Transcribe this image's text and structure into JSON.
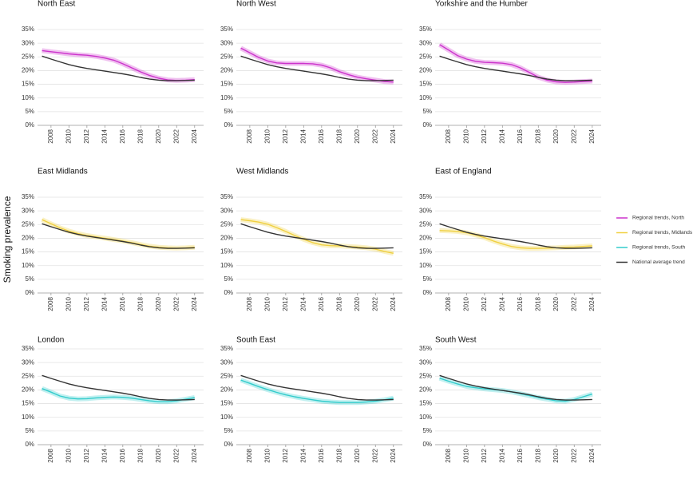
{
  "y_label": "Smoking prevalence",
  "chart_data": [
    {
      "type": "line",
      "title": "North East",
      "x": [
        2007,
        2008,
        2009,
        2010,
        2011,
        2012,
        2013,
        2014,
        2015,
        2016,
        2017,
        2018,
        2019,
        2020,
        2021,
        2022,
        2023,
        2024
      ],
      "xlim": [
        2006.5,
        2025
      ],
      "xticks": [
        2008,
        2010,
        2012,
        2014,
        2016,
        2018,
        2020,
        2022,
        2024
      ],
      "ylim": [
        0,
        35
      ],
      "yticks": [
        {
          "value": 0,
          "label": "0%"
        },
        {
          "value": 5,
          "label": "5%"
        },
        {
          "value": 10,
          "label": "10%"
        },
        {
          "value": 15,
          "label": "15%"
        },
        {
          "value": 20,
          "label": "20%"
        },
        {
          "value": 25,
          "label": "25%"
        },
        {
          "value": 30,
          "label": "30%"
        },
        {
          "value": 35,
          "label": "35%"
        }
      ],
      "grid": true,
      "series": [
        {
          "name": "Regional trends, North",
          "color": "#cc33cc",
          "values": [
            27.3,
            26.9,
            26.5,
            26.1,
            25.8,
            25.6,
            25.2,
            24.6,
            23.8,
            22.5,
            21.0,
            19.5,
            18.2,
            17.2,
            16.6,
            16.4,
            16.5,
            16.7
          ]
        },
        {
          "name": "National average trend",
          "color": "#333333",
          "values": [
            25.3,
            24.2,
            23.2,
            22.2,
            21.4,
            20.8,
            20.3,
            19.8,
            19.3,
            18.8,
            18.2,
            17.5,
            16.9,
            16.5,
            16.3,
            16.3,
            16.4,
            16.5
          ]
        }
      ]
    },
    {
      "type": "line",
      "title": "North West",
      "x": [
        2007,
        2008,
        2009,
        2010,
        2011,
        2012,
        2013,
        2014,
        2015,
        2016,
        2017,
        2018,
        2019,
        2020,
        2021,
        2022,
        2023,
        2024
      ],
      "xlim": [
        2006.5,
        2025
      ],
      "xticks": [
        2008,
        2010,
        2012,
        2014,
        2016,
        2018,
        2020,
        2022,
        2024
      ],
      "ylim": [
        0,
        35
      ],
      "yticks": [
        {
          "value": 0,
          "label": "0%"
        },
        {
          "value": 5,
          "label": "5%"
        },
        {
          "value": 10,
          "label": "10%"
        },
        {
          "value": 15,
          "label": "15%"
        },
        {
          "value": 20,
          "label": "20%"
        },
        {
          "value": 25,
          "label": "25%"
        },
        {
          "value": 30,
          "label": "30%"
        },
        {
          "value": 35,
          "label": "35%"
        }
      ],
      "grid": true,
      "series": [
        {
          "name": "Regional trends, North",
          "color": "#cc33cc",
          "values": [
            28.2,
            26.5,
            24.8,
            23.5,
            22.8,
            22.6,
            22.6,
            22.6,
            22.5,
            22.0,
            21.0,
            19.6,
            18.5,
            17.6,
            17.0,
            16.5,
            16.0,
            15.8
          ]
        },
        {
          "name": "National average trend",
          "color": "#333333",
          "values": [
            25.3,
            24.2,
            23.2,
            22.2,
            21.4,
            20.8,
            20.3,
            19.8,
            19.3,
            18.8,
            18.2,
            17.5,
            16.9,
            16.5,
            16.3,
            16.3,
            16.4,
            16.5
          ]
        }
      ]
    },
    {
      "type": "line",
      "title": "Yorkshire and the Humber",
      "x": [
        2007,
        2008,
        2009,
        2010,
        2011,
        2012,
        2013,
        2014,
        2015,
        2016,
        2017,
        2018,
        2019,
        2020,
        2021,
        2022,
        2023,
        2024
      ],
      "xlim": [
        2006.5,
        2025
      ],
      "xticks": [
        2008,
        2010,
        2012,
        2014,
        2016,
        2018,
        2020,
        2022,
        2024
      ],
      "ylim": [
        0,
        35
      ],
      "yticks": [
        {
          "value": 0,
          "label": "0%"
        },
        {
          "value": 5,
          "label": "5%"
        },
        {
          "value": 10,
          "label": "10%"
        },
        {
          "value": 15,
          "label": "15%"
        },
        {
          "value": 20,
          "label": "20%"
        },
        {
          "value": 25,
          "label": "25%"
        },
        {
          "value": 30,
          "label": "30%"
        },
        {
          "value": 35,
          "label": "35%"
        }
      ],
      "grid": true,
      "series": [
        {
          "name": "Regional trends, North",
          "color": "#cc33cc",
          "values": [
            29.5,
            27.5,
            25.5,
            24.2,
            23.4,
            23.0,
            22.9,
            22.7,
            22.2,
            21.0,
            19.3,
            17.6,
            16.5,
            15.9,
            15.7,
            15.8,
            16.0,
            16.2
          ]
        },
        {
          "name": "National average trend",
          "color": "#333333",
          "values": [
            25.3,
            24.2,
            23.2,
            22.2,
            21.4,
            20.8,
            20.3,
            19.8,
            19.3,
            18.8,
            18.2,
            17.5,
            16.9,
            16.5,
            16.3,
            16.3,
            16.4,
            16.5
          ]
        }
      ]
    },
    {
      "type": "line",
      "title": "East Midlands",
      "x": [
        2007,
        2008,
        2009,
        2010,
        2011,
        2012,
        2013,
        2014,
        2015,
        2016,
        2017,
        2018,
        2019,
        2020,
        2021,
        2022,
        2023,
        2024
      ],
      "xlim": [
        2006.5,
        2025
      ],
      "xticks": [
        2008,
        2010,
        2012,
        2014,
        2016,
        2018,
        2020,
        2022,
        2024
      ],
      "ylim": [
        0,
        35
      ],
      "yticks": [
        {
          "value": 0,
          "label": "0%"
        },
        {
          "value": 5,
          "label": "5%"
        },
        {
          "value": 10,
          "label": "10%"
        },
        {
          "value": 15,
          "label": "15%"
        },
        {
          "value": 20,
          "label": "20%"
        },
        {
          "value": 25,
          "label": "25%"
        },
        {
          "value": 30,
          "label": "30%"
        },
        {
          "value": 35,
          "label": "35%"
        }
      ],
      "grid": true,
      "series": [
        {
          "name": "Regional trends, Midlands",
          "color": "#f0d040",
          "values": [
            26.8,
            25.3,
            23.8,
            22.6,
            21.7,
            21.0,
            20.5,
            20.0,
            19.5,
            19.0,
            18.4,
            17.7,
            17.1,
            16.7,
            16.5,
            16.4,
            16.5,
            16.7
          ]
        },
        {
          "name": "National average trend",
          "color": "#333333",
          "values": [
            25.3,
            24.2,
            23.2,
            22.2,
            21.4,
            20.8,
            20.3,
            19.8,
            19.3,
            18.8,
            18.2,
            17.5,
            16.9,
            16.5,
            16.3,
            16.3,
            16.4,
            16.5
          ]
        }
      ]
    },
    {
      "type": "line",
      "title": "West Midlands",
      "x": [
        2007,
        2008,
        2009,
        2010,
        2011,
        2012,
        2013,
        2014,
        2015,
        2016,
        2017,
        2018,
        2019,
        2020,
        2021,
        2022,
        2023,
        2024
      ],
      "xlim": [
        2006.5,
        2025
      ],
      "xticks": [
        2008,
        2010,
        2012,
        2014,
        2016,
        2018,
        2020,
        2022,
        2024
      ],
      "ylim": [
        0,
        35
      ],
      "yticks": [
        {
          "value": 0,
          "label": "0%"
        },
        {
          "value": 5,
          "label": "5%"
        },
        {
          "value": 10,
          "label": "10%"
        },
        {
          "value": 15,
          "label": "15%"
        },
        {
          "value": 20,
          "label": "20%"
        },
        {
          "value": 25,
          "label": "25%"
        },
        {
          "value": 30,
          "label": "30%"
        },
        {
          "value": 35,
          "label": "35%"
        }
      ],
      "grid": true,
      "series": [
        {
          "name": "Regional trends, Midlands",
          "color": "#f0d040",
          "values": [
            26.8,
            26.4,
            25.9,
            25.1,
            23.9,
            22.5,
            21.0,
            19.6,
            18.4,
            17.6,
            17.3,
            17.2,
            17.0,
            16.8,
            16.5,
            16.0,
            15.2,
            14.5
          ]
        },
        {
          "name": "National average trend",
          "color": "#333333",
          "values": [
            25.3,
            24.2,
            23.2,
            22.2,
            21.4,
            20.8,
            20.3,
            19.8,
            19.3,
            18.8,
            18.2,
            17.5,
            16.9,
            16.5,
            16.3,
            16.3,
            16.4,
            16.5
          ]
        }
      ]
    },
    {
      "type": "line",
      "title": "East of England",
      "x": [
        2007,
        2008,
        2009,
        2010,
        2011,
        2012,
        2013,
        2014,
        2015,
        2016,
        2017,
        2018,
        2019,
        2020,
        2021,
        2022,
        2023,
        2024
      ],
      "xlim": [
        2006.5,
        2025
      ],
      "xticks": [
        2008,
        2010,
        2012,
        2014,
        2016,
        2018,
        2020,
        2022,
        2024
      ],
      "ylim": [
        0,
        35
      ],
      "yticks": [
        {
          "value": 0,
          "label": "0%"
        },
        {
          "value": 5,
          "label": "5%"
        },
        {
          "value": 10,
          "label": "10%"
        },
        {
          "value": 15,
          "label": "15%"
        },
        {
          "value": 20,
          "label": "20%"
        },
        {
          "value": 25,
          "label": "25%"
        },
        {
          "value": 30,
          "label": "30%"
        },
        {
          "value": 35,
          "label": "35%"
        }
      ],
      "grid": true,
      "series": [
        {
          "name": "Regional trends, Midlands",
          "color": "#f0d040",
          "values": [
            22.8,
            22.7,
            22.5,
            22.0,
            21.2,
            20.2,
            19.0,
            17.9,
            17.0,
            16.5,
            16.3,
            16.3,
            16.4,
            16.5,
            16.7,
            16.8,
            17.0,
            17.2
          ]
        },
        {
          "name": "National average trend",
          "color": "#333333",
          "values": [
            25.3,
            24.2,
            23.2,
            22.2,
            21.4,
            20.8,
            20.3,
            19.8,
            19.3,
            18.8,
            18.2,
            17.5,
            16.9,
            16.5,
            16.3,
            16.3,
            16.4,
            16.5
          ]
        }
      ]
    },
    {
      "type": "line",
      "title": "London",
      "x": [
        2007,
        2008,
        2009,
        2010,
        2011,
        2012,
        2013,
        2014,
        2015,
        2016,
        2017,
        2018,
        2019,
        2020,
        2021,
        2022,
        2023,
        2024
      ],
      "xlim": [
        2006.5,
        2025
      ],
      "xticks": [
        2008,
        2010,
        2012,
        2014,
        2016,
        2018,
        2020,
        2022,
        2024
      ],
      "ylim": [
        0,
        35
      ],
      "yticks": [
        {
          "value": 0,
          "label": "0%"
        },
        {
          "value": 5,
          "label": "5%"
        },
        {
          "value": 10,
          "label": "10%"
        },
        {
          "value": 15,
          "label": "15%"
        },
        {
          "value": 20,
          "label": "20%"
        },
        {
          "value": 25,
          "label": "25%"
        },
        {
          "value": 30,
          "label": "30%"
        },
        {
          "value": 35,
          "label": "35%"
        }
      ],
      "grid": true,
      "series": [
        {
          "name": "Regional trends, South",
          "color": "#33cccc",
          "values": [
            20.5,
            19.2,
            17.8,
            17.0,
            16.7,
            16.8,
            17.1,
            17.3,
            17.4,
            17.3,
            17.0,
            16.5,
            16.0,
            15.7,
            15.7,
            16.0,
            16.6,
            17.2
          ]
        },
        {
          "name": "National average trend",
          "color": "#333333",
          "values": [
            25.3,
            24.2,
            23.2,
            22.2,
            21.4,
            20.8,
            20.3,
            19.8,
            19.3,
            18.8,
            18.2,
            17.5,
            16.9,
            16.5,
            16.3,
            16.3,
            16.4,
            16.5
          ]
        }
      ]
    },
    {
      "type": "line",
      "title": "South East",
      "x": [
        2007,
        2008,
        2009,
        2010,
        2011,
        2012,
        2013,
        2014,
        2015,
        2016,
        2017,
        2018,
        2019,
        2020,
        2021,
        2022,
        2023,
        2024
      ],
      "xlim": [
        2006.5,
        2025
      ],
      "xticks": [
        2008,
        2010,
        2012,
        2014,
        2016,
        2018,
        2020,
        2022,
        2024
      ],
      "ylim": [
        0,
        35
      ],
      "yticks": [
        {
          "value": 0,
          "label": "0%"
        },
        {
          "value": 5,
          "label": "5%"
        },
        {
          "value": 10,
          "label": "10%"
        },
        {
          "value": 15,
          "label": "15%"
        },
        {
          "value": 20,
          "label": "20%"
        },
        {
          "value": 25,
          "label": "25%"
        },
        {
          "value": 30,
          "label": "30%"
        },
        {
          "value": 35,
          "label": "35%"
        }
      ],
      "grid": true,
      "series": [
        {
          "name": "Regional trends, South",
          "color": "#33cccc",
          "values": [
            23.6,
            22.4,
            21.2,
            20.1,
            19.1,
            18.2,
            17.5,
            16.9,
            16.4,
            15.9,
            15.6,
            15.4,
            15.4,
            15.4,
            15.6,
            15.9,
            16.4,
            17.0
          ]
        },
        {
          "name": "National average trend",
          "color": "#333333",
          "values": [
            25.3,
            24.2,
            23.2,
            22.2,
            21.4,
            20.8,
            20.3,
            19.8,
            19.3,
            18.8,
            18.2,
            17.5,
            16.9,
            16.5,
            16.3,
            16.3,
            16.4,
            16.5
          ]
        }
      ]
    },
    {
      "type": "line",
      "title": "South West",
      "x": [
        2007,
        2008,
        2009,
        2010,
        2011,
        2012,
        2013,
        2014,
        2015,
        2016,
        2017,
        2018,
        2019,
        2020,
        2021,
        2022,
        2023,
        2024
      ],
      "xlim": [
        2006.5,
        2025
      ],
      "xticks": [
        2008,
        2010,
        2012,
        2014,
        2016,
        2018,
        2020,
        2022,
        2024
      ],
      "ylim": [
        0,
        35
      ],
      "yticks": [
        {
          "value": 0,
          "label": "0%"
        },
        {
          "value": 5,
          "label": "5%"
        },
        {
          "value": 10,
          "label": "10%"
        },
        {
          "value": 15,
          "label": "15%"
        },
        {
          "value": 20,
          "label": "20%"
        },
        {
          "value": 25,
          "label": "25%"
        },
        {
          "value": 30,
          "label": "30%"
        },
        {
          "value": 35,
          "label": "35%"
        }
      ],
      "grid": true,
      "series": [
        {
          "name": "Regional trends, South",
          "color": "#33cccc",
          "values": [
            24.3,
            23.2,
            22.2,
            21.3,
            20.8,
            20.4,
            20.1,
            19.8,
            19.3,
            18.6,
            17.9,
            17.2,
            16.6,
            16.0,
            15.9,
            16.5,
            17.5,
            18.5
          ]
        },
        {
          "name": "National average trend",
          "color": "#333333",
          "values": [
            25.3,
            24.2,
            23.2,
            22.2,
            21.4,
            20.8,
            20.3,
            19.8,
            19.3,
            18.8,
            18.2,
            17.5,
            16.9,
            16.5,
            16.3,
            16.3,
            16.4,
            16.5
          ]
        }
      ]
    }
  ]
}
